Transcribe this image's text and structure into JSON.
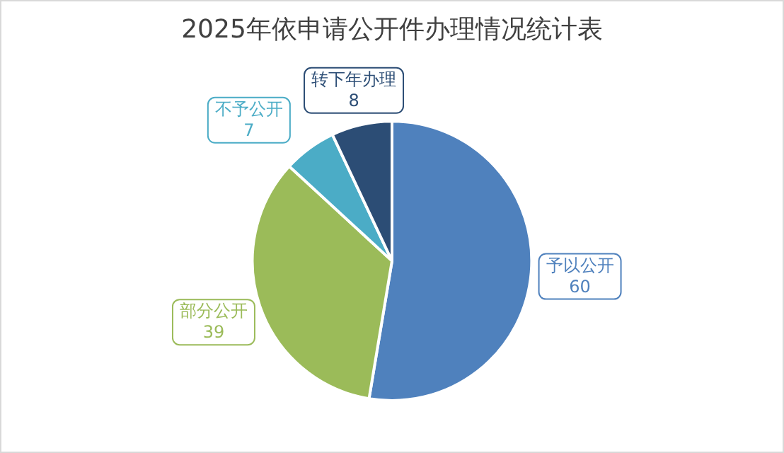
{
  "chart_data": {
    "type": "pie",
    "title": "2025年依申请公开件办理情况统计表",
    "categories": [
      "予以公开",
      "部分公开",
      "不予公开",
      "转下年办理"
    ],
    "values": [
      60,
      39,
      7,
      8
    ],
    "colors": [
      "#4f81bd",
      "#9bbb59",
      "#4bacc6",
      "#2c4d75"
    ],
    "data_labels": true,
    "legend": false
  }
}
